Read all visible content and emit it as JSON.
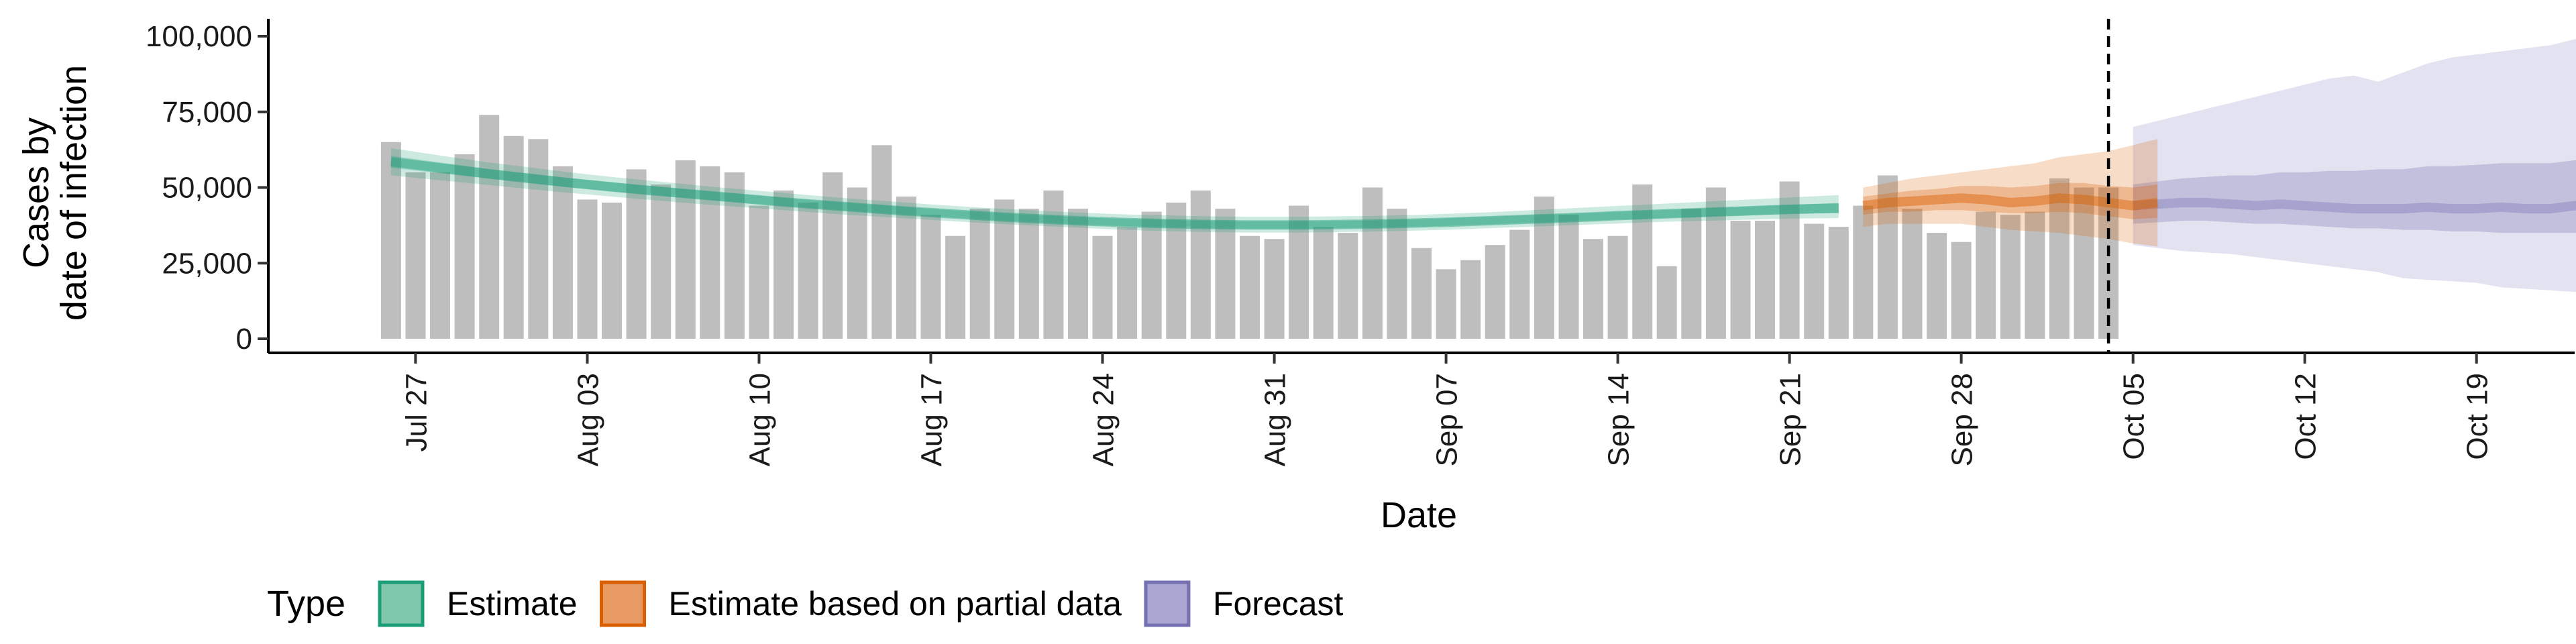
{
  "chart_data": {
    "type": "bar",
    "xlabel": "Date",
    "ylabel_lines": [
      "Cases by",
      "date of infection"
    ],
    "ylim": [
      0,
      100000
    ],
    "yticks": [
      0,
      25000,
      50000,
      75000,
      100000
    ],
    "ytick_labels": [
      "0",
      "25,000",
      "50,000",
      "75,000",
      "100,000"
    ],
    "xlim": [
      "2021-07-21",
      "2021-10-23"
    ],
    "xticks": [
      "2021-07-27",
      "2021-08-03",
      "2021-08-10",
      "2021-08-17",
      "2021-08-24",
      "2021-08-31",
      "2021-09-07",
      "2021-09-14",
      "2021-09-21",
      "2021-09-28",
      "2021-10-05",
      "2021-10-12",
      "2021-10-19"
    ],
    "xtick_labels": [
      "Jul 27",
      "Aug 03",
      "Aug 10",
      "Aug 17",
      "Aug 24",
      "Aug 31",
      "Sep 07",
      "Sep 14",
      "Sep 21",
      "Sep 28",
      "Oct 05",
      "Oct 12",
      "Oct 19"
    ],
    "forecast_boundary": "2021-10-04",
    "bars": {
      "start_date": "2021-07-26",
      "values": [
        65000,
        55000,
        55000,
        61000,
        74000,
        67000,
        66000,
        57000,
        46000,
        45000,
        56000,
        51000,
        59000,
        57000,
        55000,
        44000,
        49000,
        45000,
        55000,
        50000,
        64000,
        47000,
        41000,
        34000,
        43000,
        46000,
        43000,
        49000,
        43000,
        34000,
        37000,
        42000,
        45000,
        49000,
        43000,
        34000,
        33000,
        44000,
        37000,
        35000,
        50000,
        43000,
        30000,
        23000,
        26000,
        31000,
        36000,
        47000,
        41000,
        33000,
        34000,
        51000,
        24000,
        43000,
        50000,
        39000,
        39000,
        52000,
        38000,
        37000,
        44000,
        54000,
        43000,
        35000,
        32000,
        42000,
        41000,
        42000,
        53000,
        50000,
        50000
      ]
    },
    "series": [
      {
        "name": "Estimate",
        "color": "#1b9e77",
        "start_date": "2021-07-26",
        "median": [
          58500,
          57500,
          56500,
          55500,
          54500,
          53600,
          52700,
          51800,
          51000,
          50200,
          49400,
          48700,
          48000,
          47300,
          46600,
          45900,
          45200,
          44600,
          44000,
          43400,
          42800,
          42200,
          41700,
          41200,
          40700,
          40200,
          39800,
          39400,
          39000,
          38700,
          38400,
          38200,
          38000,
          37800,
          37700,
          37600,
          37600,
          37600,
          37700,
          37800,
          37900,
          38100,
          38300,
          38500,
          38800,
          39100,
          39400,
          39700,
          40000,
          40300,
          40700,
          41000,
          41300,
          41600,
          41900,
          42200,
          42500,
          42800,
          43000,
          43200
        ],
        "band50_low": [
          56500,
          55600,
          54700,
          53800,
          52900,
          52000,
          51100,
          50300,
          49500,
          48700,
          48000,
          47300,
          46600,
          45900,
          45200,
          44500,
          43900,
          43300,
          42700,
          42100,
          41500,
          41000,
          40500,
          40000,
          39500,
          39000,
          38600,
          38200,
          37800,
          37500,
          37200,
          37000,
          36800,
          36600,
          36500,
          36400,
          36400,
          36400,
          36500,
          36600,
          36700,
          36900,
          37100,
          37300,
          37600,
          37900,
          38200,
          38500,
          38800,
          39100,
          39400,
          39700,
          40000,
          40200,
          40500,
          40700,
          41000,
          41200,
          41400,
          41500
        ],
        "band50_high": [
          60500,
          59400,
          58300,
          57200,
          56100,
          55200,
          54300,
          53400,
          52500,
          51700,
          50900,
          50200,
          49400,
          48700,
          48000,
          47300,
          46600,
          45900,
          45300,
          44700,
          44100,
          43500,
          42900,
          42400,
          41900,
          41400,
          41000,
          40600,
          40200,
          39900,
          39600,
          39400,
          39200,
          39000,
          38900,
          38800,
          38800,
          38800,
          38900,
          39000,
          39100,
          39300,
          39500,
          39800,
          40100,
          40400,
          40700,
          41000,
          41300,
          41600,
          41900,
          42300,
          42600,
          42900,
          43300,
          43600,
          43900,
          44300,
          44600,
          44900
        ],
        "band90_low": [
          54000,
          53200,
          52400,
          51600,
          50800,
          50000,
          49200,
          48400,
          47700,
          47000,
          46300,
          45600,
          44900,
          44300,
          43700,
          43100,
          42500,
          41900,
          41300,
          40800,
          40300,
          39800,
          39300,
          38800,
          38300,
          37900,
          37500,
          37100,
          36700,
          36300,
          36000,
          35700,
          35500,
          35300,
          35200,
          35100,
          35100,
          35100,
          35200,
          35300,
          35400,
          35600,
          35800,
          36000,
          36300,
          36600,
          36900,
          37200,
          37500,
          37800,
          38100,
          38400,
          38700,
          38900,
          39100,
          39300,
          39500,
          39700,
          39800,
          39900
        ],
        "band90_high": [
          63000,
          61800,
          60600,
          59400,
          58300,
          57300,
          56300,
          55300,
          54400,
          53500,
          52700,
          51900,
          51100,
          50300,
          49600,
          48900,
          48200,
          47500,
          46800,
          46200,
          45600,
          45000,
          44400,
          43900,
          43400,
          42900,
          42500,
          42100,
          41700,
          41400,
          41100,
          40900,
          40700,
          40500,
          40400,
          40300,
          40300,
          40300,
          40400,
          40500,
          40600,
          40800,
          41000,
          41300,
          41600,
          41900,
          42300,
          42700,
          43100,
          43500,
          43900,
          44300,
          44700,
          45100,
          45500,
          45900,
          46300,
          46700,
          47100,
          47500
        ]
      },
      {
        "name": "Estimate based on partial data",
        "color": "#d95f02",
        "start_date": "2021-09-24",
        "median": [
          44000,
          45000,
          45500,
          46000,
          46500,
          46000,
          45000,
          45500,
          46500,
          46000,
          45000,
          44000,
          45000
        ],
        "band50_low": [
          41000,
          42000,
          42000,
          42500,
          42500,
          42000,
          41500,
          41500,
          42000,
          41500,
          40500,
          39500,
          40000
        ],
        "band50_high": [
          47000,
          48000,
          49000,
          49500,
          50500,
          50500,
          50000,
          50500,
          51500,
          51500,
          50500,
          50000,
          51000
        ],
        "band90_low": [
          37000,
          38000,
          38000,
          38000,
          38000,
          37000,
          36000,
          35500,
          35000,
          34000,
          33000,
          31500,
          30500
        ],
        "band90_high": [
          50000,
          51500,
          53000,
          54000,
          55000,
          56000,
          57000,
          58000,
          60000,
          61000,
          62000,
          64000,
          66000
        ]
      },
      {
        "name": "Forecast",
        "color": "#7570b3",
        "start_date": "2021-10-05",
        "median": [
          44000,
          44500,
          45000,
          45000,
          44500,
          44000,
          44500,
          44000,
          43500,
          43000,
          43000,
          43000,
          43500,
          43000,
          43000,
          43500,
          43000,
          43000,
          44000,
          44500
        ],
        "band50_low": [
          38000,
          38500,
          39000,
          39000,
          38500,
          38000,
          38000,
          37500,
          37000,
          36500,
          36500,
          36000,
          36000,
          35500,
          35500,
          35000,
          35000,
          35000,
          35000,
          35500
        ],
        "band50_high": [
          51000,
          52000,
          53000,
          53500,
          54000,
          54000,
          55000,
          55000,
          55500,
          55500,
          56000,
          56000,
          57000,
          57000,
          57500,
          58000,
          58000,
          58000,
          59000,
          60000
        ],
        "band90_low": [
          31000,
          30000,
          29000,
          28500,
          28000,
          27000,
          26000,
          25000,
          24000,
          23000,
          22000,
          20000,
          19500,
          19000,
          18500,
          17000,
          16500,
          16000,
          15500,
          15000
        ],
        "band90_high": [
          70000,
          72000,
          74000,
          76000,
          78000,
          80000,
          82000,
          84000,
          86000,
          87000,
          85000,
          88000,
          91000,
          93000,
          94000,
          95000,
          96000,
          97000,
          99000,
          100000
        ]
      }
    ],
    "legend": {
      "title": "Type",
      "position": "bottom-left",
      "entries": [
        {
          "label": "Estimate",
          "fill": "#7fc7ad",
          "stroke": "#1b9e77"
        },
        {
          "label": "Estimate based on partial data",
          "fill": "#e89a63",
          "stroke": "#d95f02"
        },
        {
          "label": "Forecast",
          "fill": "#aaa7d2",
          "stroke": "#7570b3"
        }
      ]
    },
    "bar_color": "#bebebe",
    "grid": false
  }
}
